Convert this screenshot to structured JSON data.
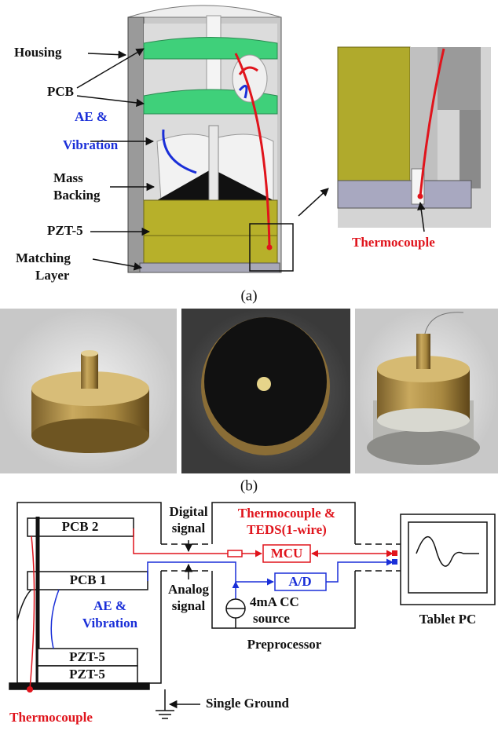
{
  "panel_a": {
    "caption": "(a)",
    "housing": "Housing",
    "pcb": "PCB",
    "ae_vibration": [
      "AE &",
      "Vibration"
    ],
    "mass_backing": [
      "Mass",
      "Backing"
    ],
    "pzt": "PZT-5",
    "matching_layer": [
      "Matching",
      "Layer"
    ],
    "thermocouple": "Thermocouple"
  },
  "panel_b": {
    "caption": "(b)"
  },
  "panel_c": {
    "pcb2": "PCB 2",
    "pcb1": "PCB 1",
    "digital_signal": [
      "Digital",
      "signal"
    ],
    "analog_signal": [
      "Analog",
      "signal"
    ],
    "thermocouple_teds": [
      "Thermocouple &",
      "TEDS(1-wire)"
    ],
    "mcu": "MCU",
    "ad": "A/D",
    "cc_source": [
      "4mA CC",
      "source"
    ],
    "ae_vibration": [
      "AE &",
      "Vibration"
    ],
    "pzt_top": "PZT-5",
    "pzt_bottom": "PZT-5",
    "preprocessor": "Preprocessor",
    "tablet": "Tablet PC",
    "single_ground": "Single Ground",
    "thermocouple": "Thermocouple"
  }
}
